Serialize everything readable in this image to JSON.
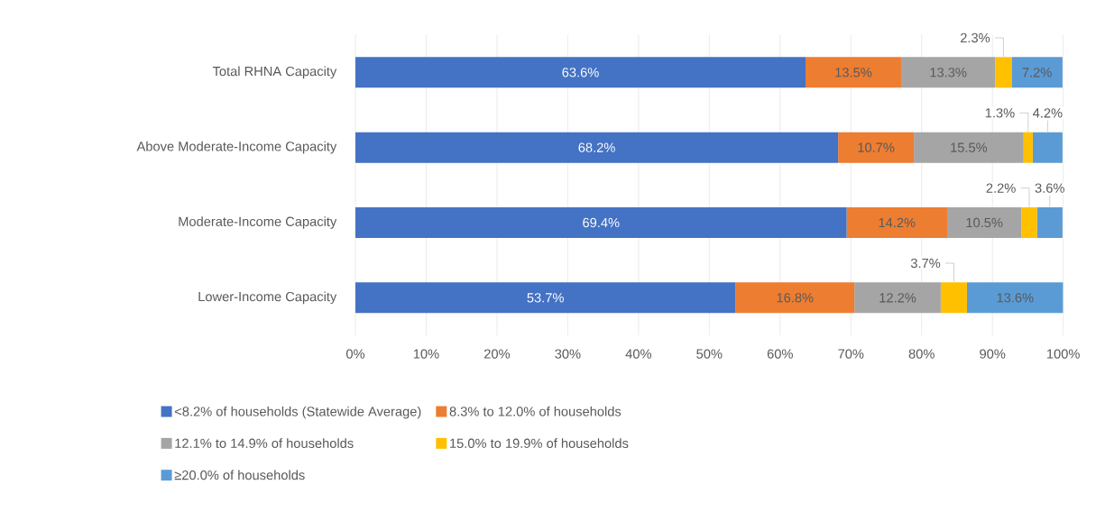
{
  "chart_data": {
    "type": "bar",
    "orientation": "horizontal",
    "stacked": true,
    "categories": [
      "Total RHNA Capacity",
      "Above Moderate-Income Capacity",
      "Moderate-Income Capacity",
      "Lower-Income Capacity"
    ],
    "series": [
      {
        "name": "<8.2% of households (Statewide Average)",
        "color": "#4472c4",
        "values": [
          63.6,
          68.2,
          69.4,
          53.7
        ],
        "value_labels": [
          "63.6%",
          "68.2%",
          "69.4%",
          "53.7%"
        ]
      },
      {
        "name": "8.3% to 12.0% of households",
        "color": "#ed7d31",
        "values": [
          13.5,
          10.7,
          14.2,
          16.8
        ],
        "value_labels": [
          "13.5%",
          "10.7%",
          "14.2%",
          "16.8%"
        ]
      },
      {
        "name": "12.1% to 14.9% of households",
        "color": "#a5a5a5",
        "values": [
          13.3,
          15.5,
          10.5,
          12.2
        ],
        "value_labels": [
          "13.3%",
          "15.5%",
          "10.5%",
          "12.2%"
        ]
      },
      {
        "name": "15.0% to 19.9% of households",
        "color": "#ffc000",
        "values": [
          2.3,
          1.3,
          2.2,
          3.7
        ],
        "value_labels": [
          "2.3%",
          "1.3%",
          "2.2%",
          "3.7%"
        ]
      },
      {
        "name": "≥20.0% of households",
        "color": "#5b9bd5",
        "values": [
          7.2,
          4.2,
          3.6,
          13.6
        ],
        "value_labels": [
          "7.2%",
          "4.2%",
          "3.6%",
          "13.6%"
        ]
      }
    ],
    "xlim": [
      0,
      100
    ],
    "xticks": [
      {
        "value": 0,
        "label": "0%"
      },
      {
        "value": 10,
        "label": "10%"
      },
      {
        "value": 20,
        "label": "20%"
      },
      {
        "value": 30,
        "label": "30%"
      },
      {
        "value": 40,
        "label": "40%"
      },
      {
        "value": 50,
        "label": "50%"
      },
      {
        "value": 60,
        "label": "60%"
      },
      {
        "value": 70,
        "label": "70%"
      },
      {
        "value": 80,
        "label": "80%"
      },
      {
        "value": 90,
        "label": "90%"
      },
      {
        "value": 100,
        "label": "100%"
      }
    ],
    "grid": "x",
    "legend": "bottom"
  }
}
